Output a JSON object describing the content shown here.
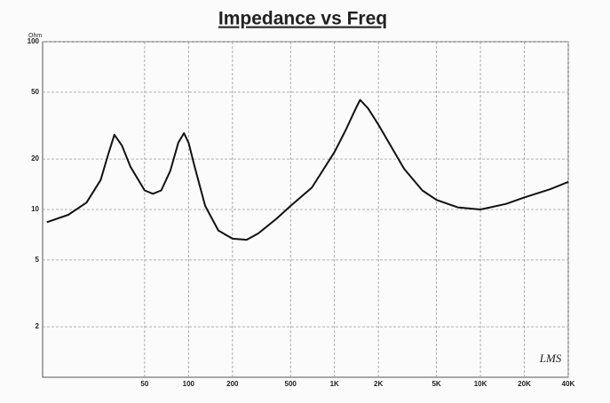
{
  "chart_data": {
    "type": "line",
    "title": "Impedance vs Freq",
    "y_unit": "Ohm",
    "x": [
      10.7,
      15,
      20,
      25,
      28,
      31,
      35,
      40,
      50,
      57,
      65,
      75,
      85,
      93,
      100,
      110,
      130,
      160,
      200,
      250,
      300,
      400,
      500,
      700,
      1000,
      1200,
      1400,
      1500,
      1700,
      2000,
      3000,
      4000,
      5000,
      7000,
      10000,
      15000,
      20000,
      30000,
      40000
    ],
    "series": [
      {
        "name": "Impedance",
        "color": "#111111",
        "values": [
          8.4,
          9.3,
          11,
          15,
          21,
          27.9,
          24,
          18,
          13,
          12.4,
          13,
          17,
          25,
          28.5,
          25,
          18,
          10.5,
          7.5,
          6.7,
          6.6,
          7.2,
          8.8,
          10.5,
          13.5,
          22,
          30,
          40,
          45,
          40,
          32,
          17.5,
          13,
          11.4,
          10.3,
          10,
          10.8,
          11.8,
          13.2,
          14.6
        ]
      }
    ],
    "xscale": "log",
    "yscale": "log",
    "xlim": [
      10,
      40000
    ],
    "ylim": [
      1,
      100
    ],
    "xticks": [
      50,
      100,
      200,
      500,
      {
        "value": 1000,
        "label": "1K"
      },
      {
        "value": 2000,
        "label": "2K"
      },
      {
        "value": 5000,
        "label": "5K"
      },
      {
        "value": 10000,
        "label": "10K"
      },
      {
        "value": 20000,
        "label": "20K"
      },
      {
        "value": 40000,
        "label": "40K"
      }
    ],
    "yticks": [
      2,
      5,
      10,
      20,
      50,
      100
    ],
    "grid": true,
    "annotations": [
      "LMS"
    ]
  }
}
